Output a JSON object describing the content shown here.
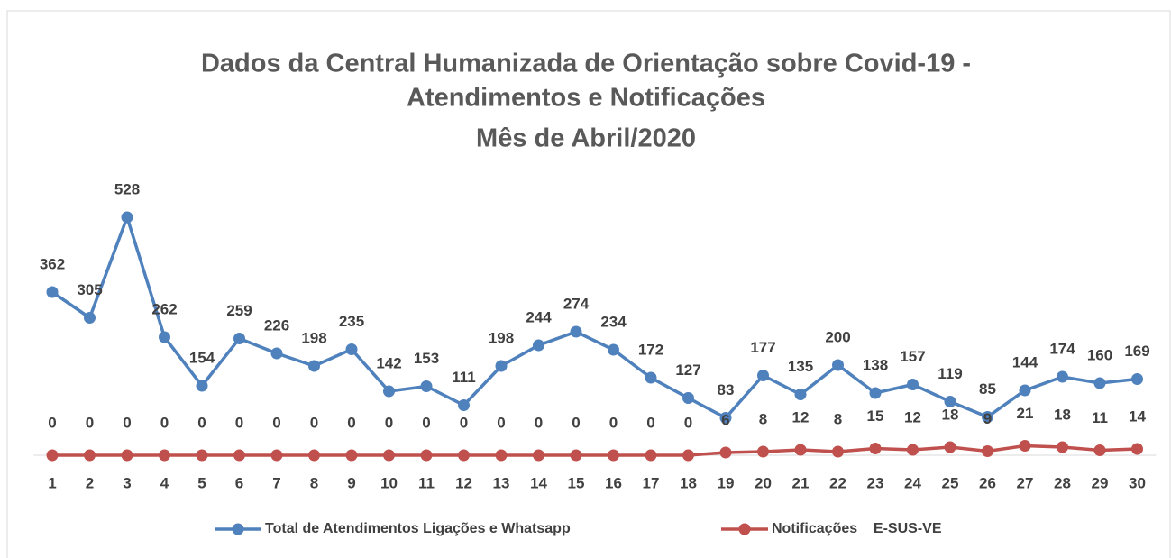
{
  "chart_data": {
    "type": "line",
    "title": [
      "Dados da Central Humanizada de Orientação sobre Covid-19 -",
      "Atendimentos e Notificações",
      "Mês de Abril/2020"
    ],
    "categories": [
      "1",
      "2",
      "3",
      "4",
      "5",
      "6",
      "7",
      "8",
      "9",
      "10",
      "11",
      "12",
      "13",
      "14",
      "15",
      "16",
      "17",
      "18",
      "19",
      "20",
      "21",
      "22",
      "23",
      "24",
      "25",
      "26",
      "27",
      "28",
      "29",
      "30"
    ],
    "series": [
      {
        "name": "Total de Atendimentos Ligações e Whatsapp",
        "color": "#4f81bd",
        "values": [
          362,
          305,
          528,
          262,
          154,
          259,
          226,
          198,
          235,
          142,
          153,
          111,
          198,
          244,
          274,
          234,
          172,
          127,
          83,
          177,
          135,
          200,
          138,
          157,
          119,
          85,
          144,
          174,
          160,
          169
        ]
      },
      {
        "name": "Notificações    E-SUS-VE",
        "color": "#c0504d",
        "values": [
          0,
          0,
          0,
          0,
          0,
          0,
          0,
          0,
          0,
          0,
          0,
          0,
          0,
          0,
          0,
          0,
          0,
          0,
          6,
          8,
          12,
          8,
          15,
          12,
          18,
          9,
          21,
          18,
          11,
          14
        ]
      }
    ],
    "ylim": [
      0,
      600
    ]
  }
}
